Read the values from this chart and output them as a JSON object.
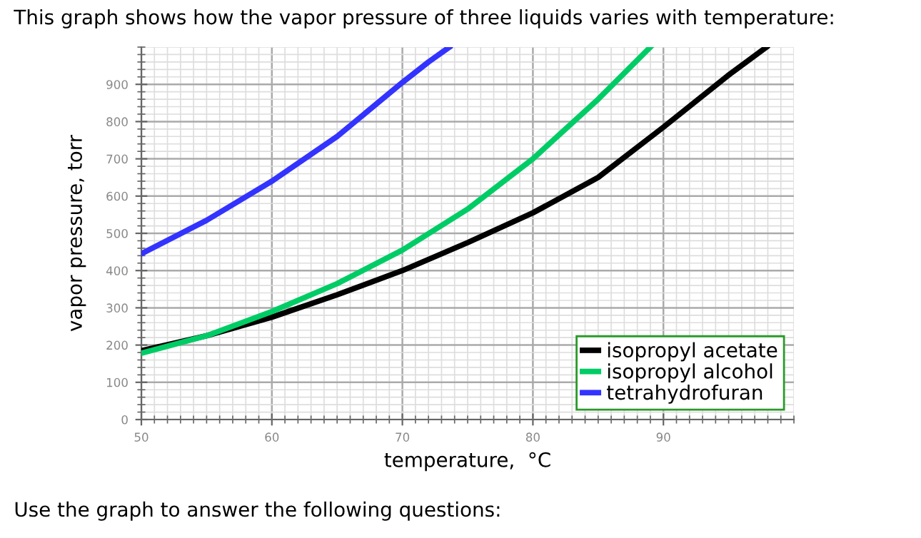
{
  "chart_data": {
    "type": "line",
    "title": "This graph shows how the vapor pressure of three liquids varies with temperature:",
    "annotations": [
      "Use the graph to answer the following questions:"
    ],
    "xlabel": "temperature,  °C",
    "ylabel": "vapor pressure, torr",
    "xlim": [
      50,
      100
    ],
    "ylim": [
      0,
      1000
    ],
    "xticks": [
      50,
      60,
      70,
      80,
      90
    ],
    "yticks": [
      0,
      100,
      200,
      300,
      400,
      500,
      600,
      700,
      800,
      900
    ],
    "grid": true,
    "legend": "bottom right",
    "marker": "none",
    "line_style": "solid",
    "series": [
      {
        "name": "isopropyl acetate",
        "color": "#000000",
        "x": [
          50,
          55,
          60,
          65,
          70,
          75,
          80,
          85,
          90,
          95,
          97.9
        ],
        "values": [
          185,
          225,
          275,
          335,
          400,
          475,
          555,
          650,
          785,
          925,
          1000
        ]
      },
      {
        "name": "isopropyl alcohol",
        "color": "#00cc66",
        "x": [
          50,
          55,
          60,
          65,
          70,
          75,
          80,
          85,
          89
        ],
        "values": [
          178,
          225,
          290,
          365,
          455,
          565,
          700,
          860,
          1000
        ]
      },
      {
        "name": "tetrahydrofuran",
        "color": "#3333ff",
        "x": [
          50,
          55,
          60,
          65,
          70,
          72,
          73.6
        ],
        "values": [
          445,
          535,
          640,
          760,
          905,
          960,
          1000
        ]
      }
    ]
  }
}
